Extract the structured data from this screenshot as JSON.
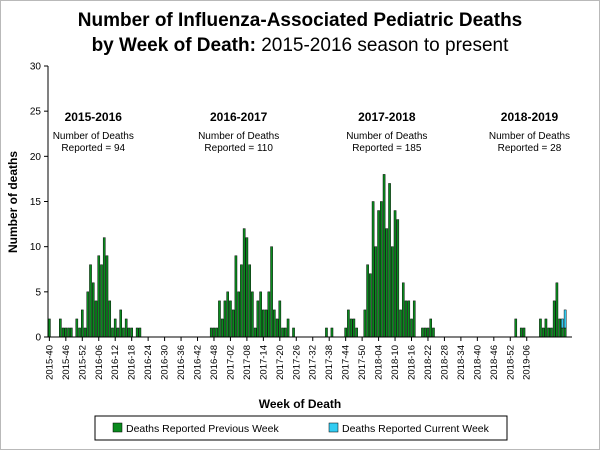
{
  "chart_data": {
    "type": "bar",
    "stacked": true,
    "title_bold": "Number of Influenza-Associated Pediatric Deaths",
    "title_line2_bold": "by Week of Death:",
    "title_line2_normal": " 2015-2016 season to present",
    "xlabel": "Week of Death",
    "ylabel": "Number of deaths",
    "ylim": [
      0,
      30
    ],
    "yticks": [
      0,
      5,
      10,
      15,
      20,
      25,
      30
    ],
    "grid": false,
    "first_week": "2015-40",
    "xtick_labels": [
      "2015-40",
      "2015-46",
      "2015-52",
      "2016-06",
      "2016-12",
      "2016-18",
      "2016-24",
      "2016-30",
      "2016-36",
      "2016-42",
      "2016-48",
      "2017-02",
      "2017-08",
      "2017-14",
      "2017-20",
      "2017-26",
      "2017-32",
      "2017-38",
      "2017-44",
      "2017-50",
      "2018-04",
      "2018-10",
      "2018-16",
      "2018-22",
      "2018-28",
      "2018-34",
      "2018-40",
      "2018-46",
      "2018-52",
      "2019-06"
    ],
    "series": [
      {
        "name": "Deaths Reported Previous Week",
        "color": "#0a8a1e",
        "values": [
          2,
          0,
          0,
          0,
          2,
          1,
          1,
          1,
          1,
          0,
          2,
          1,
          3,
          1,
          5,
          8,
          6,
          4,
          9,
          8,
          11,
          9,
          4,
          1,
          2,
          1,
          3,
          1,
          2,
          1,
          1,
          0,
          1,
          1,
          0,
          0,
          0,
          0,
          0,
          0,
          0,
          0,
          0,
          0,
          0,
          0,
          0,
          0,
          0,
          0,
          0,
          0,
          0,
          0,
          0,
          0,
          0,
          0,
          0,
          1,
          1,
          1,
          4,
          2,
          4,
          5,
          4,
          3,
          9,
          5,
          8,
          12,
          11,
          8,
          5,
          1,
          4,
          5,
          3,
          3,
          5,
          10,
          3,
          2,
          4,
          1,
          1,
          2,
          0,
          1,
          0,
          0,
          0,
          0,
          0,
          0,
          0,
          0,
          0,
          0,
          0,
          1,
          0,
          1,
          0,
          0,
          0,
          0,
          1,
          3,
          2,
          2,
          1,
          0,
          0,
          3,
          8,
          7,
          15,
          10,
          14,
          15,
          18,
          12,
          17,
          10,
          14,
          13,
          3,
          6,
          4,
          4,
          2,
          4,
          0,
          0,
          1,
          1,
          1,
          2,
          1,
          0,
          0,
          0,
          0,
          0,
          0,
          0,
          0,
          0,
          0,
          0,
          0,
          0,
          0,
          0,
          0,
          0,
          0,
          0,
          0,
          0,
          0,
          0,
          0,
          0,
          0,
          0,
          0,
          0,
          2,
          0,
          1,
          1,
          0,
          0,
          0,
          0,
          0,
          2,
          1,
          2,
          1,
          1,
          4,
          6,
          2,
          1,
          1,
          0,
          0
        ]
      },
      {
        "name": "Deaths Reported Current Week",
        "color": "#33ccf2",
        "values": [
          0,
          0,
          0,
          0,
          0,
          0,
          0,
          0,
          0,
          0,
          0,
          0,
          0,
          0,
          0,
          0,
          0,
          0,
          0,
          0,
          0,
          0,
          0,
          0,
          0,
          0,
          0,
          0,
          0,
          0,
          0,
          0,
          0,
          0,
          0,
          0,
          0,
          0,
          0,
          0,
          0,
          0,
          0,
          0,
          0,
          0,
          0,
          0,
          0,
          0,
          0,
          0,
          0,
          0,
          0,
          0,
          0,
          0,
          0,
          0,
          0,
          0,
          0,
          0,
          0,
          0,
          0,
          0,
          0,
          0,
          0,
          0,
          0,
          0,
          0,
          0,
          0,
          0,
          0,
          0,
          0,
          0,
          0,
          0,
          0,
          0,
          0,
          0,
          0,
          0,
          0,
          0,
          0,
          0,
          0,
          0,
          0,
          0,
          0,
          0,
          0,
          0,
          0,
          0,
          0,
          0,
          0,
          0,
          0,
          0,
          0,
          0,
          0,
          0,
          0,
          0,
          0,
          0,
          0,
          0,
          0,
          0,
          0,
          0,
          0,
          0,
          0,
          0,
          0,
          0,
          0,
          0,
          0,
          0,
          0,
          0,
          0,
          0,
          0,
          0,
          0,
          0,
          0,
          0,
          0,
          0,
          0,
          0,
          0,
          0,
          0,
          0,
          0,
          0,
          0,
          0,
          0,
          0,
          0,
          0,
          0,
          0,
          0,
          0,
          0,
          0,
          0,
          0,
          0,
          0,
          0,
          0,
          0,
          0,
          0,
          0,
          0,
          0,
          0,
          0,
          0,
          0,
          0,
          0,
          0,
          0,
          0,
          1,
          2,
          0,
          0
        ]
      }
    ],
    "seasons": [
      {
        "name": "2015-2016",
        "line1": "Number of Deaths",
        "line2": "Reported = 94",
        "center_week": 16
      },
      {
        "name": "2016-2017",
        "line1": "Number of Deaths",
        "line2": "Reported = 110",
        "center_week": 69
      },
      {
        "name": "2017-2018",
        "line1": "Number of Deaths",
        "line2": "Reported = 185",
        "center_week": 123
      },
      {
        "name": "2018-2019",
        "line1": "Number of Deaths",
        "line2": "Reported = 28",
        "center_week": 175
      }
    ],
    "legend_position": "bottom"
  }
}
